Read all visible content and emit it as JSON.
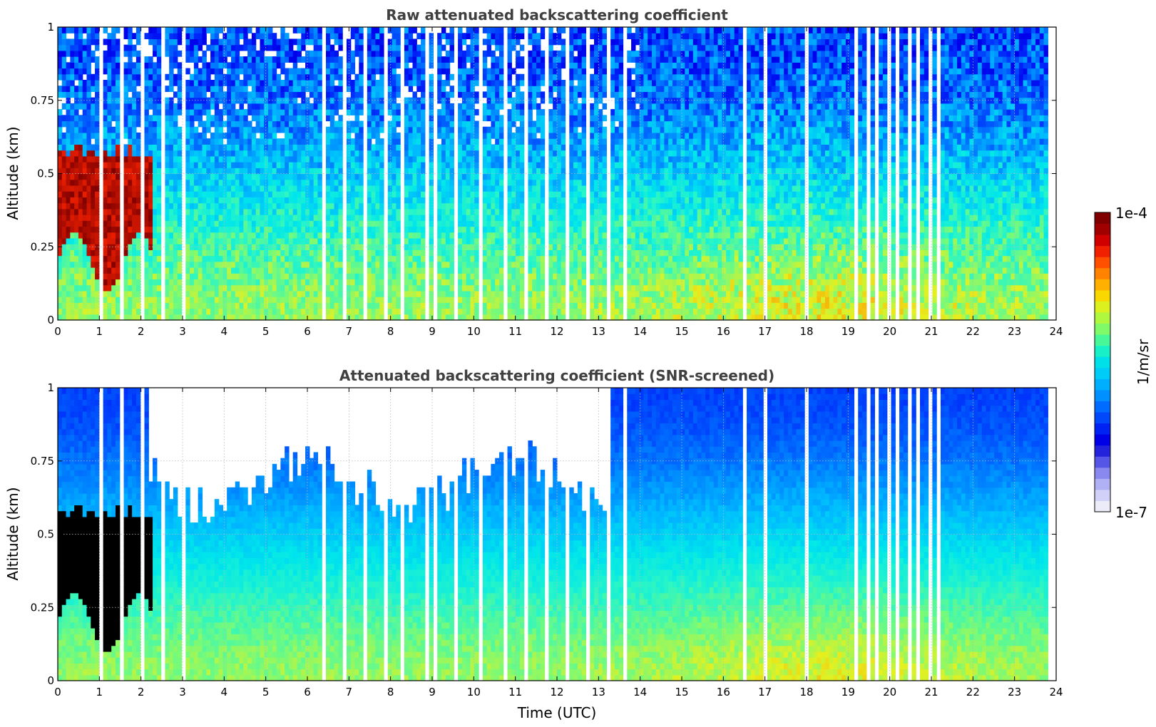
{
  "colorbar": {
    "max_label": "1e-4",
    "min_label": "1e-7",
    "unit_label": "1/m/sr",
    "colors": [
      "#ececf8",
      "#d0d0f8",
      "#b0b0f4",
      "#8888ee",
      "#5555e6",
      "#2323dc",
      "#0000e6",
      "#0022f2",
      "#0048fa",
      "#006cff",
      "#0090ff",
      "#00b0ff",
      "#00ccf8",
      "#00e0e8",
      "#18f0c8",
      "#48f898",
      "#80fa68",
      "#b0f840",
      "#dcf020",
      "#f8d800",
      "#ffb000",
      "#ff8200",
      "#ff5000",
      "#f02000",
      "#d00000",
      "#a00000",
      "#800000"
    ]
  },
  "chart_data": [
    {
      "type": "heatmap",
      "title": "Raw attenuated backscattering coefficient",
      "xlabel": "",
      "ylabel": "Altitude (km)",
      "xlim": [
        0,
        24
      ],
      "ylim": [
        0,
        1
      ],
      "x_ticks": [
        "0",
        "1",
        "2",
        "3",
        "4",
        "5",
        "6",
        "7",
        "8",
        "9",
        "10",
        "11",
        "12",
        "13",
        "14",
        "15",
        "16",
        "17",
        "18",
        "19",
        "20",
        "21",
        "22",
        "23",
        "24"
      ],
      "y_ticks": [
        "0",
        "0.25",
        "0.5",
        "0.75",
        "1"
      ],
      "data_end_time_utc": 23.8,
      "colorbar_range": [
        1e-07,
        0.0001
      ],
      "colorbar_label": "1/m/sr",
      "grid": true,
      "features": [
        {
          "name": "high-backscatter layer",
          "time_utc": [
            0,
            2.3
          ],
          "altitude_km": [
            0.2,
            0.6
          ],
          "level": "~1e-4 (dark red)"
        }
      ],
      "missing_profile_times_utc": [
        1.05,
        1.55,
        2.05,
        2.5,
        3.0,
        6.4,
        6.85,
        7.35,
        7.85,
        8.3,
        8.85,
        9.05,
        9.55,
        10.2,
        10.75,
        11.25,
        11.75,
        12.2,
        12.7,
        13.2,
        13.65,
        16.55,
        17.05,
        18.0,
        19.2,
        19.45,
        19.7,
        19.95,
        20.2,
        20.45,
        20.7,
        20.95,
        21.2
      ]
    },
    {
      "type": "heatmap",
      "title": "Attenuated backscattering coefficient (SNR-screened)",
      "xlabel": "Time (UTC)",
      "ylabel": "Altitude (km)",
      "xlim": [
        0,
        24
      ],
      "ylim": [
        0,
        1
      ],
      "x_ticks": [
        "0",
        "1",
        "2",
        "3",
        "4",
        "5",
        "6",
        "7",
        "8",
        "9",
        "10",
        "11",
        "12",
        "13",
        "14",
        "15",
        "16",
        "17",
        "18",
        "19",
        "20",
        "21",
        "22",
        "23",
        "24"
      ],
      "y_ticks": [
        "0",
        "0.25",
        "0.5",
        "0.75",
        "1"
      ],
      "data_end_time_utc": 23.8,
      "colorbar_range": [
        1e-07,
        0.0001
      ],
      "colorbar_label": "1/m/sr",
      "grid": true,
      "features": [
        {
          "name": "screened-out region (white)",
          "time_utc": [
            2.2,
            13.2
          ],
          "altitude_km": [
            0.6,
            1.0
          ]
        },
        {
          "name": "high-backscatter layer (black, saturated)",
          "time_utc": [
            0,
            2.3
          ],
          "altitude_km": [
            0.2,
            0.6
          ]
        }
      ],
      "missing_profile_times_utc": [
        1.05,
        1.55,
        2.05,
        2.5,
        3.0,
        6.4,
        6.85,
        7.35,
        7.85,
        8.3,
        8.85,
        9.05,
        9.55,
        10.2,
        10.75,
        11.25,
        11.75,
        12.2,
        12.7,
        13.2,
        13.65,
        16.55,
        17.05,
        18.0,
        19.2,
        19.45,
        19.7,
        19.95,
        20.2,
        20.45,
        20.7,
        20.95,
        21.2
      ]
    }
  ]
}
